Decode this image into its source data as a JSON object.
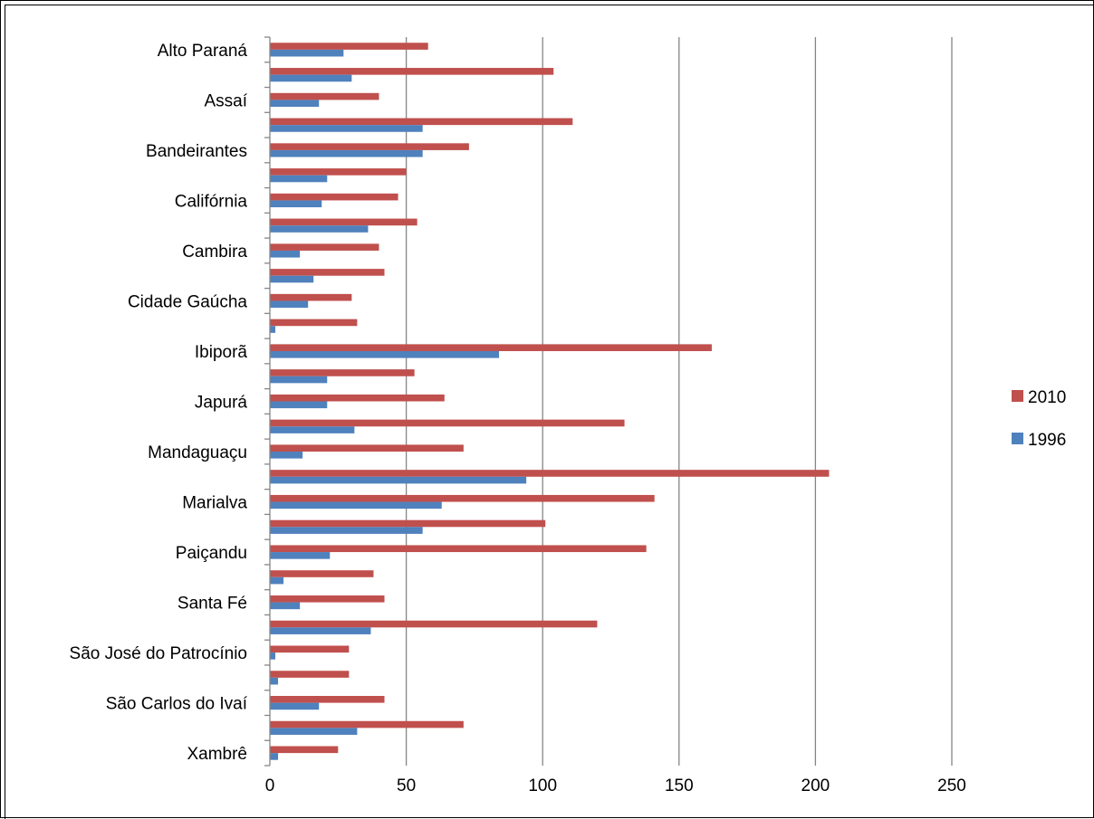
{
  "chart_data": {
    "type": "bar",
    "orientation": "horizontal",
    "title": "",
    "xlabel": "",
    "ylabel": "",
    "xlim": [
      0,
      250
    ],
    "x_ticks": [
      "0",
      "50",
      "100",
      "150",
      "200",
      "250"
    ],
    "grid": "vertical",
    "legend_position": "right",
    "category_labels_shown": [
      "Alto Paraná",
      "Assaí",
      "Bandeirantes",
      "Califórnia",
      "Cambira",
      "Cidade Gaúcha",
      "Ibiporã",
      "Japurá",
      "Mandaguaçu",
      "Marialva",
      "Paiçandu",
      "Santa Fé",
      "São José do Patrocínio",
      "São Carlos do Ivaí",
      "Xambrê"
    ],
    "category_count": 29,
    "series": [
      {
        "name": "2010",
        "color": "#C0504D",
        "values": [
          58,
          104,
          40,
          111,
          73,
          50,
          47,
          54,
          40,
          42,
          30,
          32,
          162,
          53,
          64,
          130,
          71,
          205,
          141,
          101,
          138,
          38,
          42,
          120,
          29,
          29,
          42,
          71,
          25
        ]
      },
      {
        "name": "1996",
        "color": "#4F81BD",
        "values": [
          27,
          30,
          18,
          56,
          56,
          21,
          19,
          36,
          11,
          16,
          14,
          2,
          84,
          21,
          21,
          31,
          12,
          94,
          63,
          56,
          22,
          5,
          11,
          37,
          2,
          3,
          18,
          32,
          3
        ]
      }
    ],
    "legend_order": [
      "2010",
      "1996"
    ]
  }
}
